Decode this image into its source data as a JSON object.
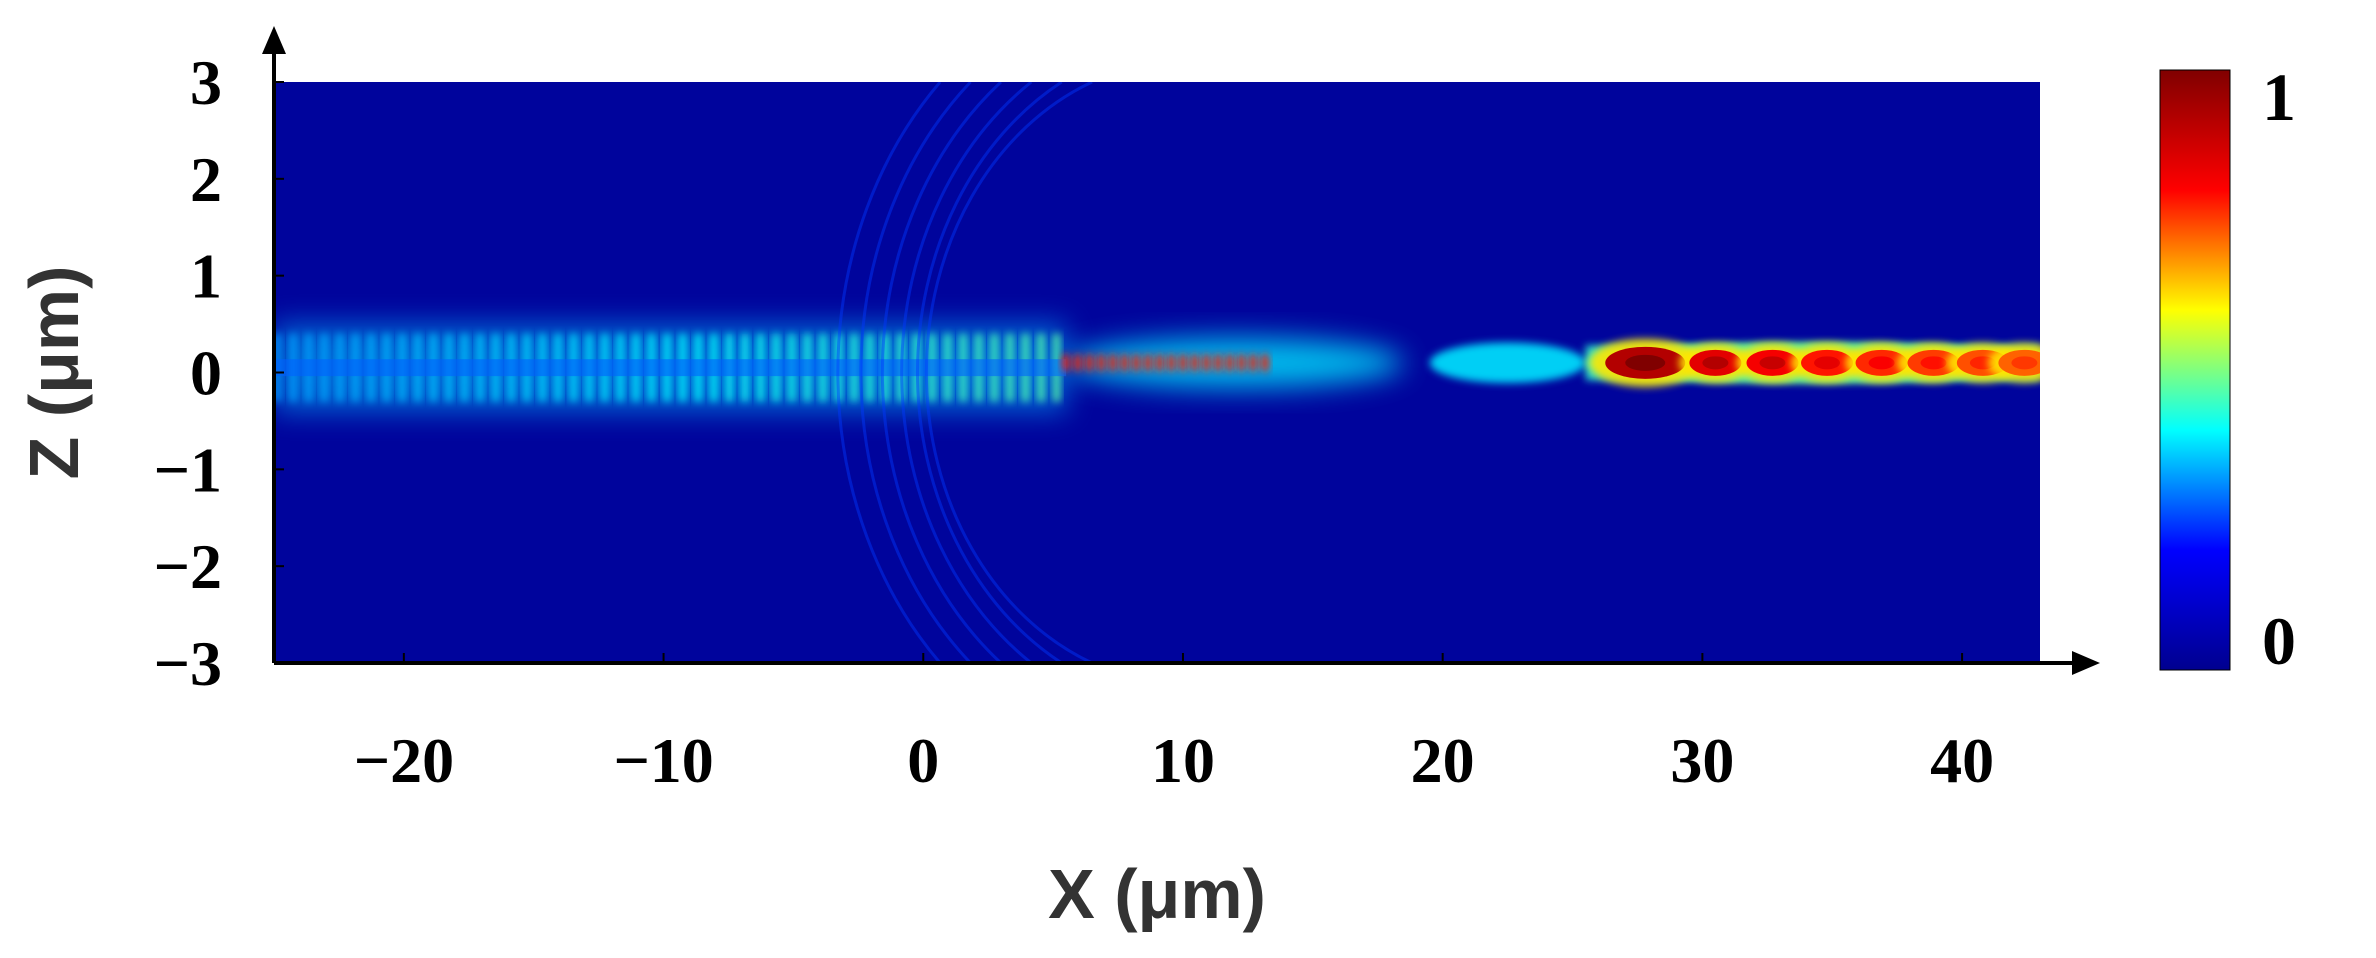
{
  "chart_data": {
    "type": "heatmap",
    "title": "",
    "xlabel": "X (μm)",
    "ylabel": "Z (μm)",
    "xlim": [
      -25,
      43
    ],
    "ylim": [
      -3,
      3
    ],
    "xticks": [
      {
        "value": -20,
        "label": "−20"
      },
      {
        "value": -10,
        "label": "−10"
      },
      {
        "value": 0,
        "label": "0"
      },
      {
        "value": 10,
        "label": "10"
      },
      {
        "value": 20,
        "label": "20"
      },
      {
        "value": 30,
        "label": "30"
      },
      {
        "value": 40,
        "label": "40"
      }
    ],
    "yticks": [
      {
        "value": 3,
        "label": "3"
      },
      {
        "value": 2,
        "label": "2"
      },
      {
        "value": 1,
        "label": "1"
      },
      {
        "value": 0,
        "label": "0"
      },
      {
        "value": -1,
        "label": "−1"
      },
      {
        "value": -2,
        "label": "−2"
      },
      {
        "value": -3,
        "label": "−3"
      }
    ],
    "colorbar": {
      "min": 0,
      "max": 1,
      "min_label": "0",
      "max_label": "1",
      "colormap": "jet",
      "colors": [
        "#00008f",
        "#0000ff",
        "#00ffff",
        "#ffff00",
        "#ff0000",
        "#800000"
      ]
    },
    "background_color": "#00049c",
    "field_regions": [
      {
        "region": "incident-beam",
        "x_range": [
          -25,
          5.5
        ],
        "z_center": 0.05,
        "z_half_width": 0.35,
        "intensity": 0.4,
        "fringe_period": 0.6
      },
      {
        "region": "focusing-lens-waist",
        "x_range": [
          5.5,
          18.5
        ],
        "z_center": 0.1,
        "z_half_width": 0.2,
        "intensity": 0.95
      },
      {
        "region": "second-lobe",
        "x_range": [
          19.5,
          25.5
        ],
        "z_center": 0.1,
        "z_half_width": 0.15,
        "intensity": 0.35
      },
      {
        "region": "guided-mode",
        "x_range": [
          25.5,
          43
        ],
        "z_center": 0.1,
        "z_half_width": 0.15,
        "intensity": 0.5
      }
    ],
    "hotspots": [
      {
        "x": 27.8,
        "z": 0.1,
        "value": 1.0
      },
      {
        "x": 30.5,
        "z": 0.1,
        "value": 0.95
      },
      {
        "x": 32.7,
        "z": 0.1,
        "value": 0.93
      },
      {
        "x": 34.8,
        "z": 0.1,
        "value": 0.9
      },
      {
        "x": 36.9,
        "z": 0.1,
        "value": 0.88
      },
      {
        "x": 38.9,
        "z": 0.1,
        "value": 0.86
      },
      {
        "x": 40.8,
        "z": 0.1,
        "value": 0.84
      },
      {
        "x": 42.4,
        "z": 0.1,
        "value": 0.82
      }
    ]
  }
}
